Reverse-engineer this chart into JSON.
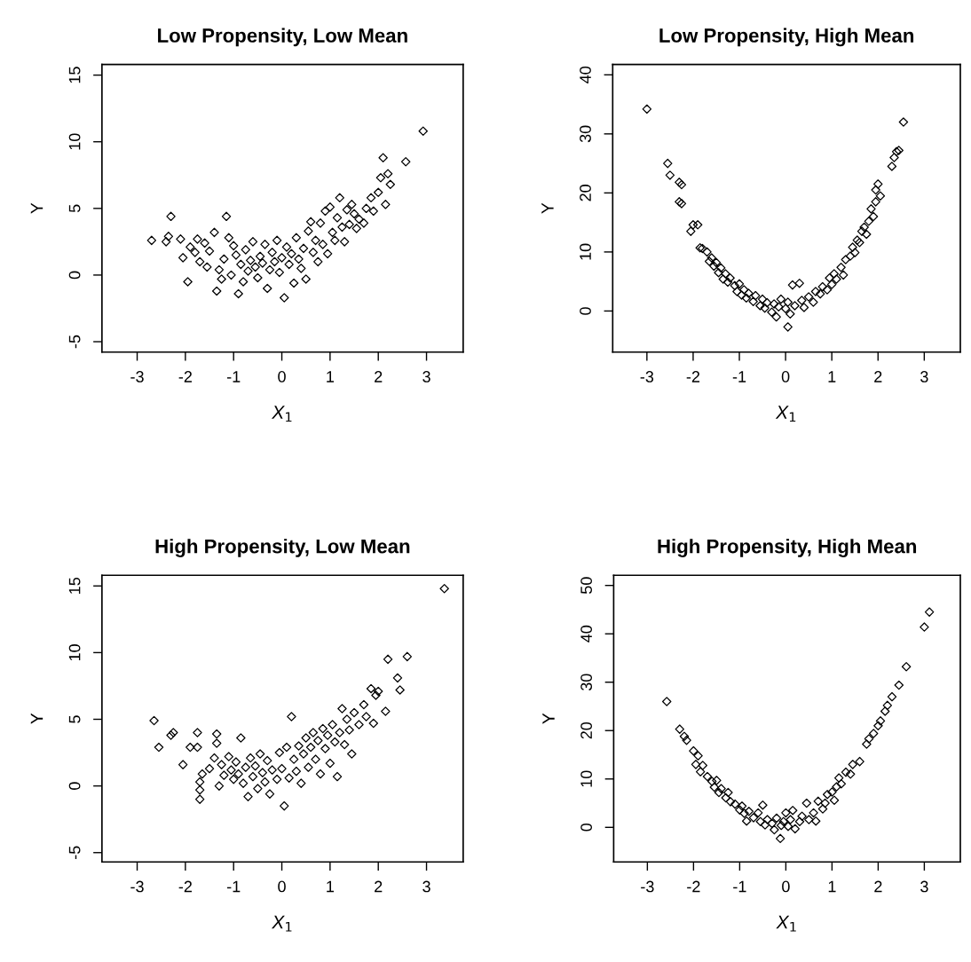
{
  "chart_data": [
    {
      "type": "scatter",
      "title": "Low Propensity, Low Mean",
      "xlabel": "X$_{1}$",
      "ylabel": "Y",
      "marker": "diamond",
      "grid": false,
      "xlim": [
        -3.73,
        3.76
      ],
      "ylim": [
        -5.78,
        15.8
      ],
      "xticks": [
        -3,
        -2,
        -1,
        0,
        1,
        2,
        3
      ],
      "yticks": [
        -5,
        0,
        5,
        10,
        15
      ],
      "series": [
        {
          "color": "#000000",
          "x": [
            -2.7,
            -2.3,
            -2.35,
            -2.4,
            -2.1,
            -2.05,
            -1.95,
            -1.9,
            -1.8,
            -1.75,
            -1.7,
            -1.6,
            -1.55,
            -1.5,
            -1.4,
            -1.35,
            -1.3,
            -1.25,
            -1.2,
            -1.15,
            -1.1,
            -1.05,
            -1.0,
            -0.95,
            -0.9,
            -0.85,
            -0.8,
            -0.75,
            -0.7,
            -0.65,
            -0.6,
            -0.55,
            -0.5,
            -0.45,
            -0.4,
            -0.35,
            -0.3,
            -0.25,
            -0.2,
            -0.15,
            -0.1,
            -0.05,
            0.0,
            0.05,
            0.1,
            0.15,
            0.2,
            0.25,
            0.3,
            0.35,
            0.4,
            0.45,
            0.5,
            0.55,
            0.6,
            0.65,
            0.7,
            0.75,
            0.8,
            0.85,
            0.9,
            0.95,
            1.0,
            1.05,
            1.1,
            1.15,
            1.2,
            1.25,
            1.3,
            1.35,
            1.4,
            1.45,
            1.5,
            1.55,
            1.6,
            1.7,
            1.75,
            1.85,
            1.9,
            2.0,
            2.05,
            2.1,
            2.15,
            2.2,
            2.25,
            2.57,
            2.93
          ],
          "values": [
            2.6,
            4.4,
            2.9,
            2.5,
            2.7,
            1.3,
            -0.5,
            2.1,
            1.7,
            2.7,
            1.0,
            2.4,
            0.6,
            1.8,
            3.2,
            -1.2,
            0.4,
            -0.3,
            1.2,
            4.4,
            2.8,
            0.0,
            2.2,
            1.5,
            -1.4,
            0.8,
            -0.5,
            1.9,
            0.3,
            1.1,
            2.5,
            0.6,
            -0.2,
            1.4,
            0.9,
            2.3,
            -1.0,
            0.4,
            1.7,
            1.0,
            2.6,
            0.2,
            1.3,
            -1.7,
            2.1,
            0.8,
            1.6,
            -0.6,
            2.8,
            1.2,
            0.5,
            2.0,
            -0.3,
            3.3,
            4.0,
            1.7,
            2.6,
            1.0,
            3.9,
            2.3,
            4.8,
            1.6,
            5.1,
            3.2,
            2.6,
            4.3,
            5.8,
            3.6,
            2.5,
            4.9,
            3.8,
            5.3,
            4.6,
            3.5,
            4.2,
            3.9,
            5.0,
            5.8,
            4.8,
            6.2,
            7.3,
            8.8,
            5.3,
            7.6,
            6.8,
            8.5,
            10.8
          ]
        }
      ]
    },
    {
      "type": "scatter",
      "title": "Low Propensity, High Mean",
      "xlabel": "X$_{1}$",
      "ylabel": "Y",
      "marker": "diamond",
      "grid": false,
      "xlim": [
        -3.74,
        3.78
      ],
      "ylim": [
        -6.96,
        41.76
      ],
      "xticks": [
        -3,
        -2,
        -1,
        0,
        1,
        2,
        3
      ],
      "yticks": [
        0,
        10,
        20,
        30,
        40
      ],
      "series": [
        {
          "color": "#000000",
          "x": [
            -3.0,
            -2.55,
            -2.5,
            -2.3,
            -2.25,
            -2.3,
            -2.25,
            -2.05,
            -2.0,
            -1.9,
            -1.85,
            -1.8,
            -1.7,
            -1.65,
            -1.6,
            -1.55,
            -1.5,
            -1.45,
            -1.4,
            -1.35,
            -1.3,
            -1.25,
            -1.2,
            -1.1,
            -1.05,
            -1.0,
            -0.95,
            -0.9,
            -0.85,
            -0.8,
            -0.7,
            -0.65,
            -0.55,
            -0.5,
            -0.45,
            -0.4,
            -0.3,
            -0.25,
            -0.2,
            -0.15,
            -0.1,
            0.05,
            0.0,
            0.05,
            0.1,
            0.15,
            0.2,
            0.3,
            0.35,
            0.4,
            0.5,
            0.6,
            0.65,
            0.75,
            0.8,
            0.9,
            0.95,
            1.0,
            1.05,
            1.1,
            1.2,
            1.25,
            1.3,
            1.4,
            1.45,
            1.5,
            1.55,
            1.6,
            1.65,
            1.7,
            1.75,
            1.8,
            1.85,
            1.9,
            1.95,
            2.0,
            1.95,
            2.05,
            2.3,
            2.35,
            2.4,
            2.45,
            2.55
          ],
          "values": [
            34.2,
            25.0,
            23.0,
            21.8,
            21.4,
            18.5,
            18.2,
            13.5,
            14.6,
            14.6,
            10.7,
            10.6,
            10.0,
            8.4,
            9.0,
            7.6,
            8.2,
            6.5,
            7.3,
            5.4,
            6.3,
            4.9,
            5.6,
            4.3,
            3.3,
            4.6,
            2.7,
            3.6,
            2.2,
            3.0,
            1.6,
            2.6,
            0.9,
            2.0,
            0.5,
            1.4,
            -0.2,
            1.2,
            -1.0,
            0.7,
            2.0,
            -2.7,
            0.4,
            1.5,
            -0.5,
            4.4,
            0.9,
            4.7,
            1.8,
            0.6,
            2.4,
            1.5,
            3.3,
            2.9,
            4.1,
            3.6,
            5.6,
            4.5,
            6.3,
            5.4,
            7.4,
            6.1,
            8.7,
            9.3,
            10.8,
            9.9,
            12.0,
            11.6,
            13.5,
            14.2,
            13.0,
            15.2,
            17.3,
            16.0,
            18.5,
            21.5,
            20.5,
            19.5,
            24.5,
            26.0,
            27.0,
            27.2,
            32.0
          ]
        }
      ]
    },
    {
      "type": "scatter",
      "title": "High Propensity, Low Mean",
      "xlabel": "X$_{1}$",
      "ylabel": "Y",
      "marker": "diamond",
      "grid": false,
      "xlim": [
        -3.73,
        3.76
      ],
      "ylim": [
        -5.7,
        15.8
      ],
      "xticks": [
        -3,
        -2,
        -1,
        0,
        1,
        2,
        3
      ],
      "yticks": [
        -5,
        0,
        5,
        10,
        15
      ],
      "series": [
        {
          "color": "#000000",
          "x": [
            -2.65,
            -2.55,
            -2.3,
            -2.25,
            -2.05,
            -1.9,
            -1.75,
            -1.75,
            -1.7,
            -1.7,
            -1.7,
            -1.65,
            -1.5,
            -1.4,
            -1.35,
            -1.35,
            -1.3,
            -1.25,
            -1.2,
            -1.1,
            -1.05,
            -1.0,
            -0.95,
            -0.9,
            -0.85,
            -0.8,
            -0.75,
            -0.7,
            -0.65,
            -0.6,
            -0.55,
            -0.5,
            -0.45,
            -0.4,
            -0.35,
            -0.3,
            -0.25,
            -0.2,
            -0.1,
            -0.05,
            0.0,
            0.05,
            0.1,
            0.15,
            0.2,
            0.25,
            0.3,
            0.35,
            0.4,
            0.45,
            0.5,
            0.55,
            0.6,
            0.65,
            0.7,
            0.75,
            0.8,
            0.85,
            0.9,
            0.95,
            1.0,
            1.05,
            1.1,
            1.15,
            1.2,
            1.25,
            1.3,
            1.35,
            1.4,
            1.45,
            1.5,
            1.6,
            1.7,
            1.75,
            1.85,
            1.9,
            1.95,
            2.0,
            2.15,
            2.2,
            2.4,
            2.45,
            2.6,
            3.37
          ],
          "values": [
            4.9,
            2.9,
            3.8,
            4.0,
            1.6,
            2.9,
            4.0,
            2.9,
            0.3,
            -0.3,
            -1.0,
            0.9,
            1.3,
            2.1,
            3.9,
            3.2,
            0.0,
            1.6,
            0.8,
            2.2,
            1.2,
            0.5,
            1.8,
            0.9,
            3.6,
            0.2,
            1.4,
            -0.8,
            2.1,
            0.7,
            1.5,
            -0.2,
            2.4,
            1.0,
            0.3,
            1.9,
            -0.6,
            1.2,
            0.5,
            2.5,
            1.3,
            -1.5,
            2.9,
            0.6,
            5.2,
            2.0,
            1.1,
            3.0,
            0.2,
            2.4,
            3.6,
            1.4,
            2.9,
            4.0,
            2.0,
            3.4,
            0.9,
            4.3,
            2.8,
            3.8,
            1.7,
            4.6,
            3.3,
            0.7,
            4.0,
            5.8,
            3.1,
            5.0,
            4.2,
            2.4,
            5.5,
            4.6,
            6.1,
            5.2,
            7.3,
            4.7,
            6.8,
            7.1,
            5.6,
            9.5,
            8.1,
            7.2,
            9.7,
            14.8
          ]
        }
      ]
    },
    {
      "type": "scatter",
      "title": "High Propensity, High Mean",
      "xlabel": "X$_{1}$",
      "ylabel": "Y",
      "marker": "diamond",
      "grid": false,
      "xlim": [
        -3.73,
        3.78
      ],
      "ylim": [
        -7.15,
        52.1
      ],
      "xticks": [
        -3,
        -2,
        -1,
        0,
        1,
        2,
        3
      ],
      "yticks": [
        0,
        10,
        20,
        30,
        40,
        50
      ],
      "series": [
        {
          "color": "#000000",
          "x": [
            -2.58,
            -2.3,
            -2.2,
            -2.15,
            -2.0,
            -1.95,
            -1.9,
            -1.85,
            -1.8,
            -1.7,
            -1.6,
            -1.55,
            -1.5,
            -1.45,
            -1.4,
            -1.3,
            -1.25,
            -1.2,
            -1.1,
            -1.0,
            -0.95,
            -0.9,
            -0.85,
            -0.8,
            -0.7,
            -0.6,
            -0.55,
            -0.5,
            -0.45,
            -0.4,
            -0.3,
            -0.25,
            -0.2,
            -0.12,
            -0.1,
            -0.05,
            0.0,
            0.05,
            0.1,
            0.15,
            0.2,
            0.3,
            0.35,
            0.45,
            0.5,
            0.6,
            0.65,
            0.7,
            0.8,
            0.85,
            0.9,
            1.0,
            1.05,
            1.1,
            1.15,
            1.2,
            1.3,
            1.4,
            1.45,
            1.6,
            1.75,
            1.8,
            1.9,
            2.0,
            2.05,
            2.15,
            2.2,
            2.3,
            2.45,
            2.61,
            3.0,
            3.11
          ],
          "values": [
            26.0,
            20.3,
            18.8,
            18.0,
            15.8,
            13.0,
            14.8,
            11.5,
            12.8,
            10.5,
            9.5,
            8.3,
            9.7,
            7.2,
            8.0,
            6.1,
            7.2,
            5.3,
            4.8,
            3.6,
            4.4,
            2.9,
            1.3,
            3.3,
            2.0,
            3.0,
            1.2,
            4.6,
            0.5,
            1.6,
            0.8,
            -0.5,
            1.9,
            -2.3,
            0.4,
            1.2,
            3.0,
            0.2,
            1.6,
            3.5,
            -0.3,
            1.2,
            2.3,
            5.0,
            1.6,
            3.0,
            1.3,
            5.4,
            3.8,
            5.0,
            6.8,
            7.3,
            5.6,
            8.4,
            10.2,
            9.0,
            11.4,
            11.0,
            13.0,
            13.6,
            17.2,
            18.3,
            19.4,
            21.0,
            22.0,
            24.0,
            25.2,
            27.0,
            29.4,
            33.2,
            41.4,
            44.5
          ]
        }
      ]
    }
  ]
}
